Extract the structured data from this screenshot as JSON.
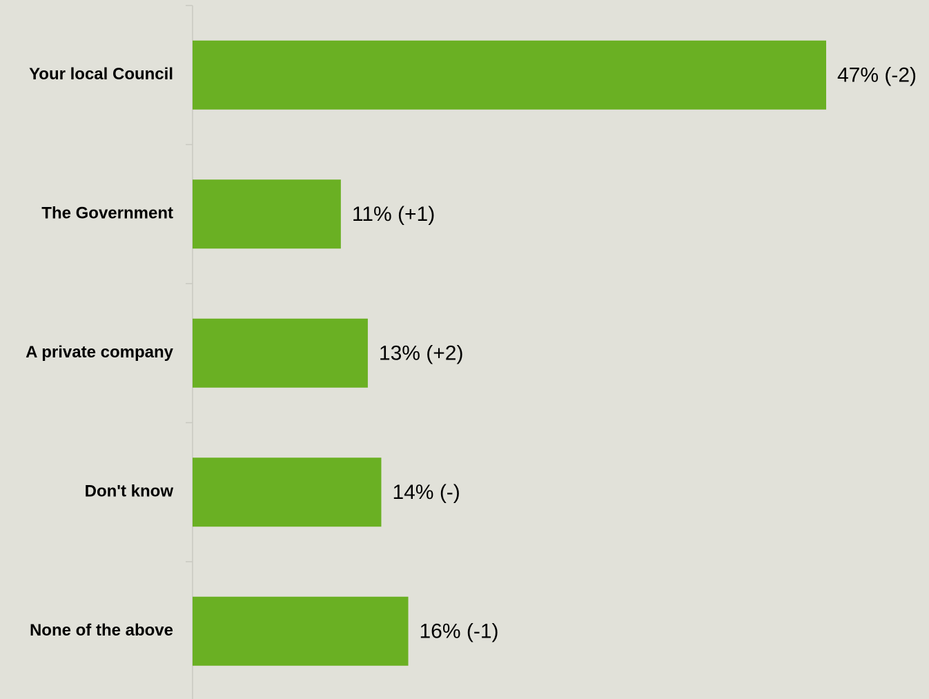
{
  "chart_data": {
    "type": "bar",
    "orientation": "horizontal",
    "categories": [
      "Your local Council",
      "The Government",
      "A private company",
      "Don't know",
      "None of the above"
    ],
    "values": [
      47,
      11,
      13,
      14,
      16
    ],
    "data_labels": [
      "47% (-2)",
      "11% (+1)",
      "13% (+2)",
      "14% (-)",
      "16% (-1)"
    ],
    "bar_color": "#6ab023",
    "background_color": "#e1e1d9",
    "xlim": [
      0,
      47
    ],
    "grid": false,
    "legend": "none",
    "title": "",
    "xlabel": "",
    "ylabel": ""
  }
}
